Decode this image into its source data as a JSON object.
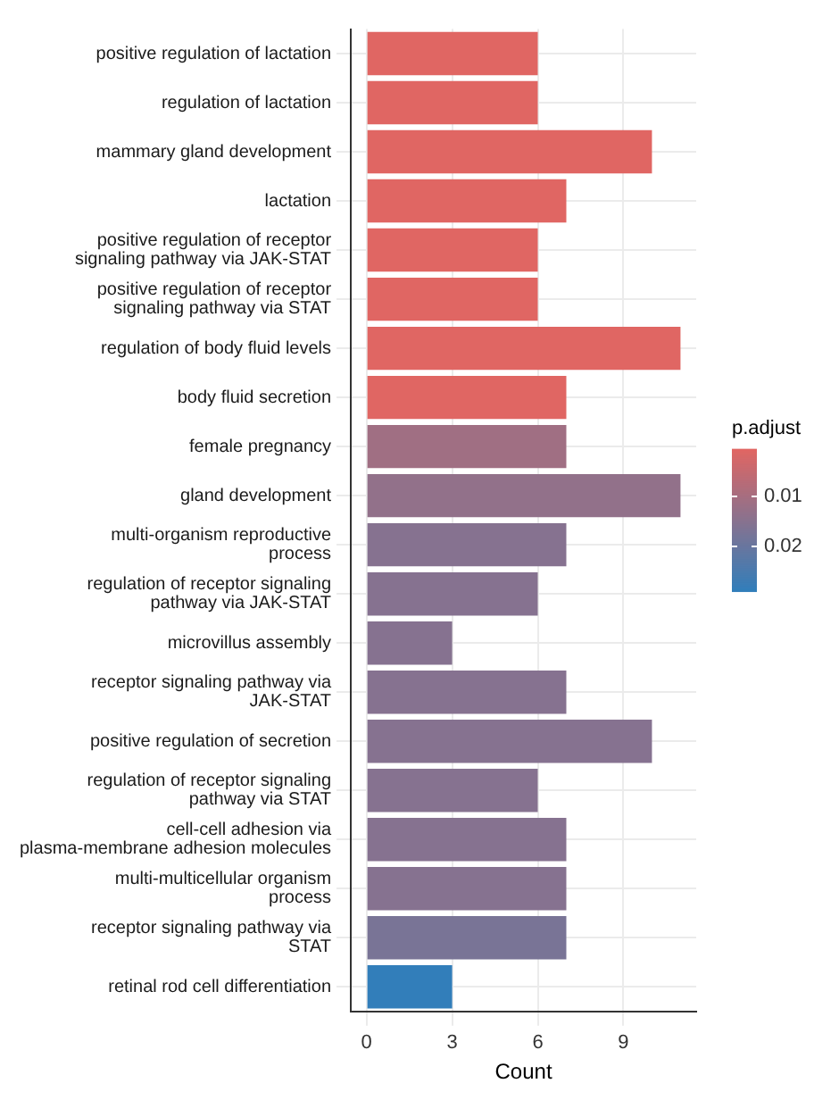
{
  "chart_data": {
    "type": "bar",
    "orientation": "horizontal",
    "xlabel": "Count",
    "clabel": "p.adjust",
    "categories": [
      "positive regulation of lactation",
      "regulation of lactation",
      "mammary gland development",
      "lactation",
      "positive regulation of receptor signaling pathway via JAK-STAT",
      "positive regulation of receptor signaling pathway via STAT",
      "regulation of body fluid levels",
      "body fluid secretion",
      "female pregnancy",
      "gland development",
      "multi-organism reproductive process",
      "regulation of receptor signaling pathway via JAK-STAT",
      "microvillus assembly",
      "receptor signaling pathway via JAK-STAT",
      "positive regulation of secretion",
      "regulation of receptor signaling pathway via STAT",
      "cell-cell adhesion via plasma-membrane adhesion molecules",
      "multi-multicellular organism process",
      "receptor signaling pathway via STAT",
      "retinal rod cell differentiation"
    ],
    "values": [
      6,
      6,
      10,
      7,
      6,
      6,
      11,
      7,
      7,
      11,
      7,
      6,
      3,
      7,
      10,
      6,
      7,
      7,
      7,
      3
    ],
    "cvalues": [
      0.0005,
      0.0005,
      0.0005,
      0.0005,
      0.0005,
      0.0005,
      0.0005,
      0.0005,
      0.011,
      0.0133,
      0.0153,
      0.0153,
      0.0153,
      0.0153,
      0.0153,
      0.0153,
      0.0153,
      0.0153,
      0.0173,
      0.029
    ],
    "clim": [
      0.0005,
      0.029
    ],
    "cticks": [
      0.01,
      0.02
    ],
    "xlim": [
      -0.55,
      11.55
    ],
    "xticks": [
      0,
      3,
      6,
      9
    ],
    "grid": true
  }
}
